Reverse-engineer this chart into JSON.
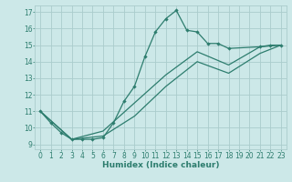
{
  "xlabel": "Humidex (Indice chaleur)",
  "xlim": [
    -0.5,
    23.5
  ],
  "ylim": [
    8.7,
    17.4
  ],
  "xticks": [
    0,
    1,
    2,
    3,
    4,
    5,
    6,
    7,
    8,
    9,
    10,
    11,
    12,
    13,
    14,
    15,
    16,
    17,
    18,
    19,
    20,
    21,
    22,
    23
  ],
  "yticks": [
    9,
    10,
    11,
    12,
    13,
    14,
    15,
    16,
    17
  ],
  "bg_color": "#cce8e8",
  "grid_color": "#aacccc",
  "line_color": "#2d7d6e",
  "line1_x": [
    0,
    1,
    2,
    3,
    4,
    5,
    6,
    7,
    8,
    9,
    10,
    11,
    12,
    13,
    14,
    15,
    16,
    17,
    18,
    21,
    22,
    23
  ],
  "line1_y": [
    11.0,
    10.3,
    9.7,
    9.3,
    9.3,
    9.3,
    9.4,
    10.3,
    11.6,
    12.5,
    14.3,
    15.8,
    16.6,
    17.1,
    15.9,
    15.8,
    15.1,
    15.1,
    14.8,
    14.9,
    15.0,
    15.0
  ],
  "line2_x": [
    0,
    23
  ],
  "line2_y": [
    11.0,
    15.0
  ],
  "line3_x": [
    0,
    23
  ],
  "line3_y": [
    11.0,
    15.0
  ],
  "line2_through": [
    [
      0,
      11.0
    ],
    [
      3,
      9.3
    ],
    [
      6,
      9.8
    ],
    [
      9,
      11.5
    ],
    [
      12,
      13.2
    ],
    [
      15,
      14.6
    ],
    [
      18,
      13.8
    ],
    [
      21,
      14.9
    ],
    [
      23,
      15.0
    ]
  ],
  "line3_through": [
    [
      0,
      11.0
    ],
    [
      3,
      9.3
    ],
    [
      6,
      9.5
    ],
    [
      9,
      10.7
    ],
    [
      12,
      12.5
    ],
    [
      15,
      14.0
    ],
    [
      18,
      13.3
    ],
    [
      21,
      14.5
    ],
    [
      23,
      15.0
    ]
  ]
}
